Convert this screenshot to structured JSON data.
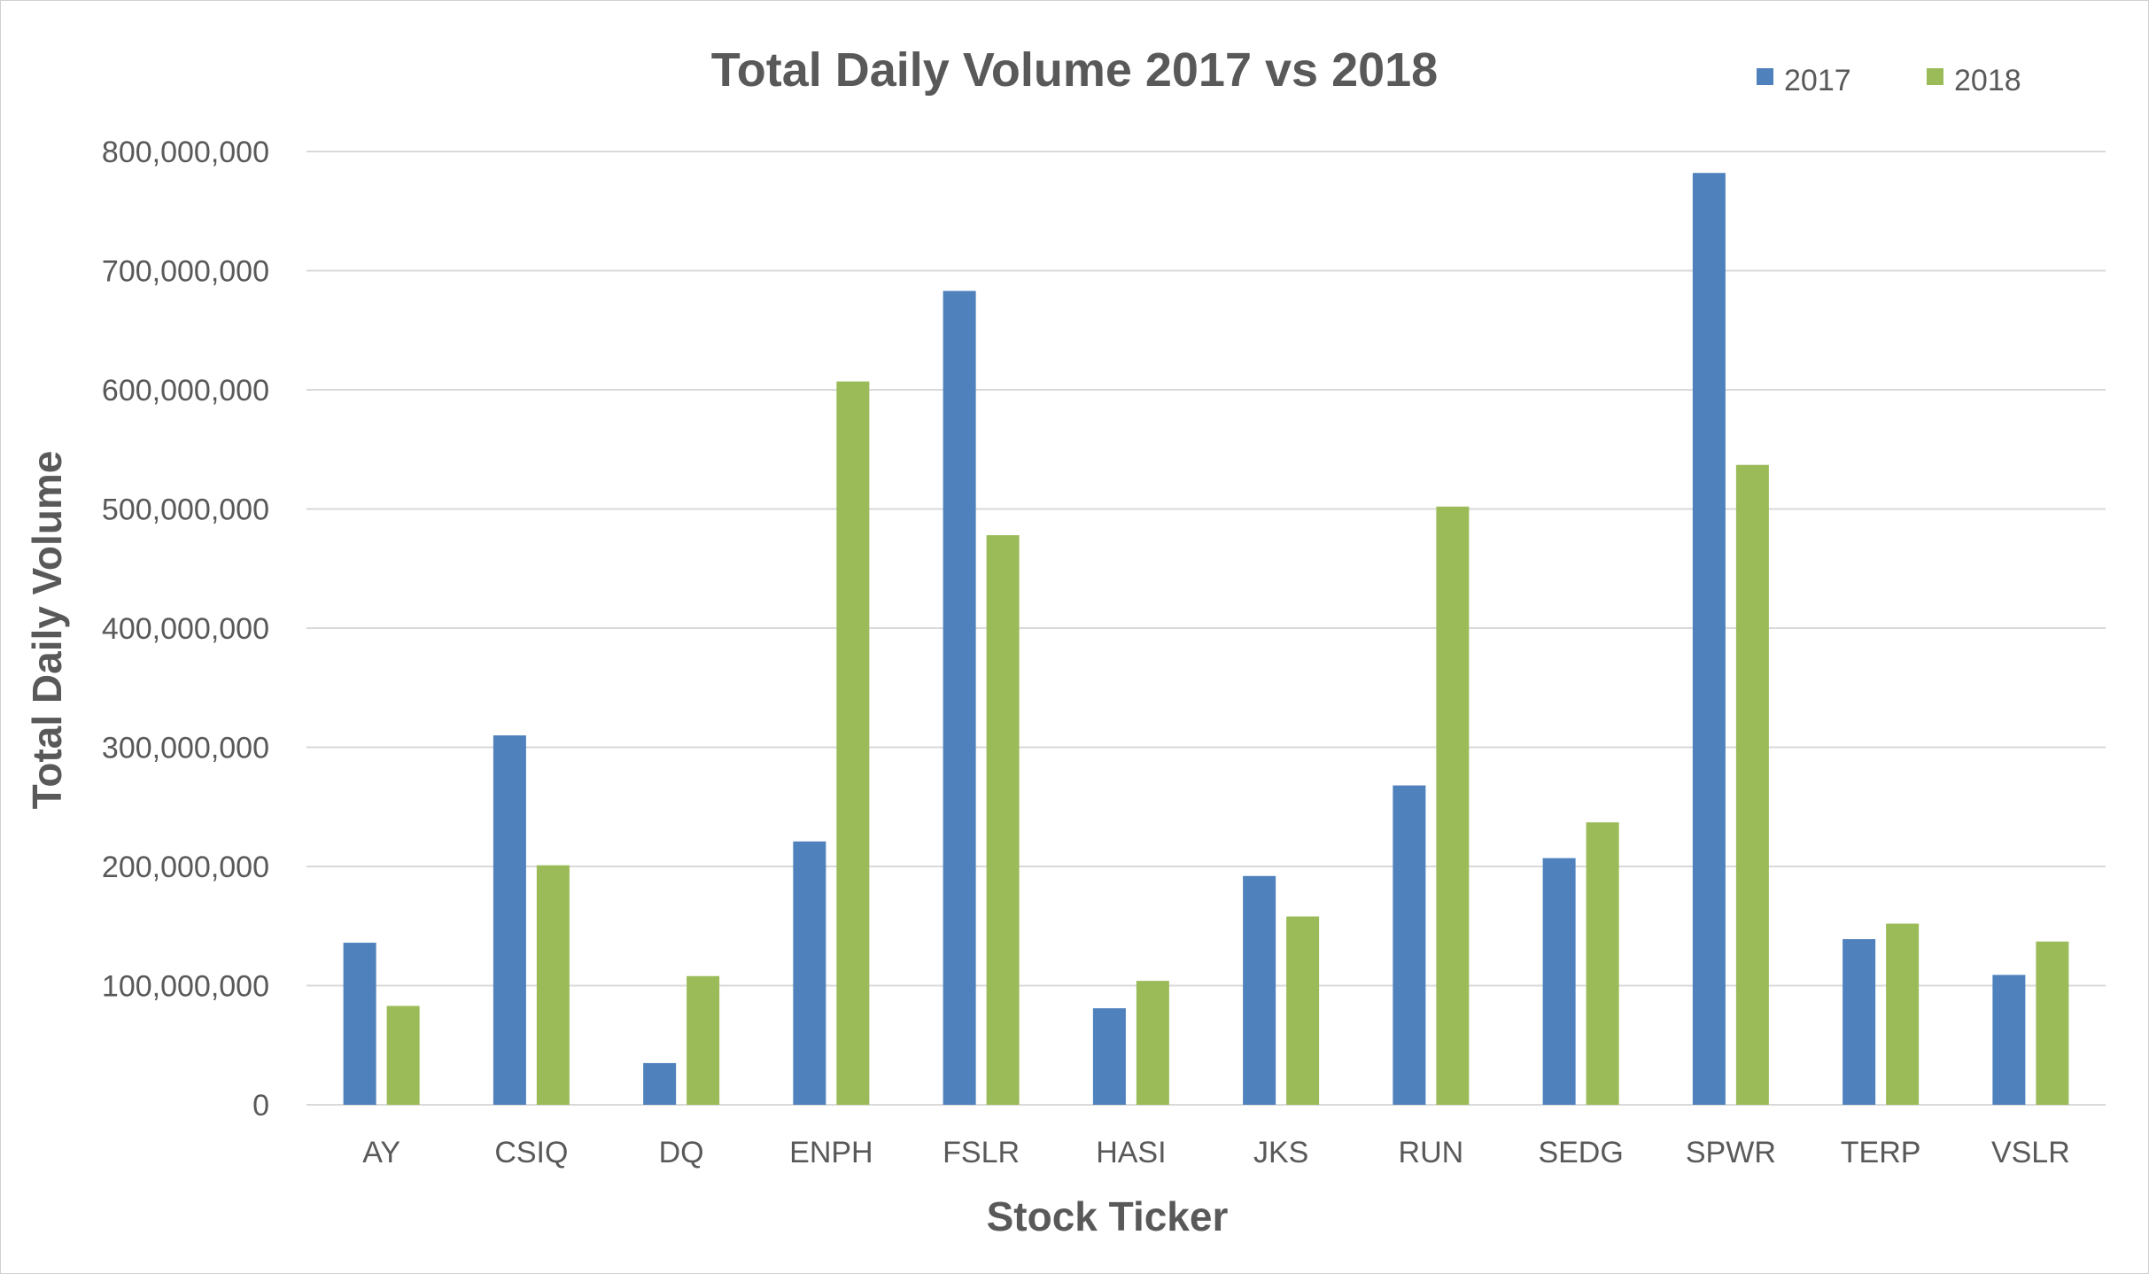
{
  "chart_data": {
    "type": "bar",
    "title": "Total Daily Volume 2017 vs 2018",
    "xlabel": "Stock Ticker",
    "ylabel": "Total Daily Volume",
    "ylim": [
      0,
      800000000
    ],
    "ytick_step": 100000000,
    "grid": true,
    "legend_position": "top-right",
    "categories": [
      "AY",
      "CSIQ",
      "DQ",
      "ENPH",
      "FSLR",
      "HASI",
      "JKS",
      "RUN",
      "SEDG",
      "SPWR",
      "TERP",
      "VSLR"
    ],
    "series": [
      {
        "name": "2017",
        "color": "#4f81bd",
        "values": [
          136000000,
          310000000,
          35000000,
          221000000,
          683000000,
          81000000,
          192000000,
          268000000,
          207000000,
          782000000,
          139000000,
          109000000
        ]
      },
      {
        "name": "2018",
        "color": "#9bbb59",
        "values": [
          83000000,
          201000000,
          108000000,
          607000000,
          478000000,
          104000000,
          158000000,
          502000000,
          237000000,
          537000000,
          152000000,
          137000000
        ]
      }
    ]
  }
}
